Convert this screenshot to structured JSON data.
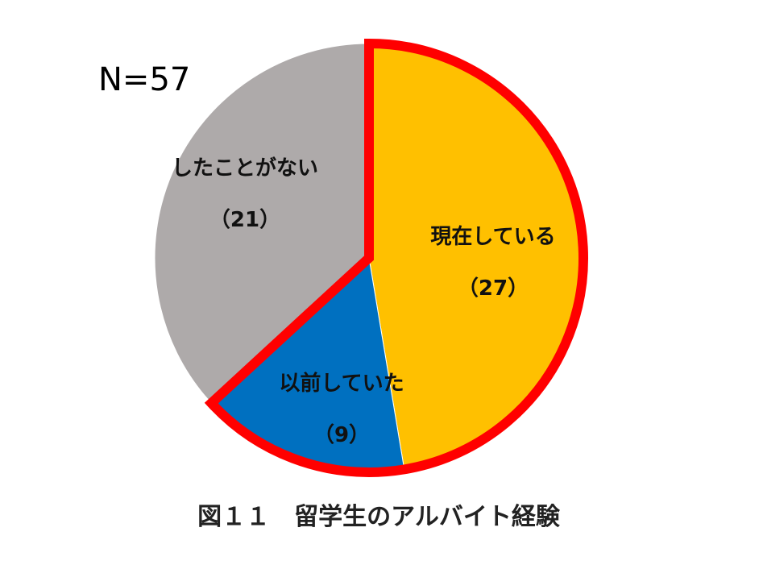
{
  "sample_size_label": "N=57",
  "caption": "図１１　留学生のアルバイト経験",
  "chart_data": {
    "type": "pie",
    "title": "図１１　留学生のアルバイト経験",
    "total": 57,
    "slices": [
      {
        "label": "現在している",
        "count_label": "（27）",
        "value": 27,
        "color": "#FFC000",
        "highlighted": true
      },
      {
        "label": "以前していた",
        "count_label": "（9）",
        "value": 9,
        "color": "#0070C0",
        "highlighted": true
      },
      {
        "label": "したことがない",
        "count_label": "（21）",
        "value": 21,
        "color": "#AEAAAA",
        "highlighted": false
      }
    ],
    "start_angle": "12 o'clock",
    "direction": "clockwise",
    "highlight_outline_color": "#FF0000"
  }
}
